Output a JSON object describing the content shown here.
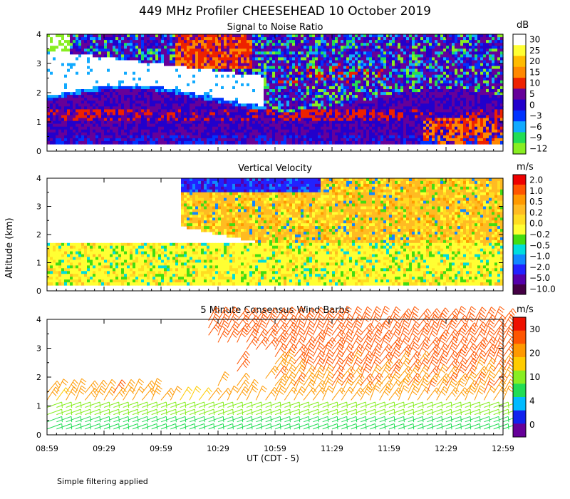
{
  "title": "449 MHz Profiler CHEESEHEAD 10 October 2019",
  "ylabel": "Altitude (km)",
  "xlabel": "UT  (CDT - 5)",
  "footnote": "Simple filtering applied",
  "colors": {
    "snr": [
      "#88ee22",
      "#22dd55",
      "#11aaff",
      "#0033ff",
      "#2200cc",
      "#660099",
      "#ee2200",
      "#ff8800",
      "#ffbb00",
      "#ffff33",
      "#ffffff"
    ],
    "vv": [
      "#440044",
      "#5500aa",
      "#2222ff",
      "#1188ff",
      "#00dddd",
      "#44dd11",
      "#ffff33",
      "#ffdd22",
      "#ffbb22",
      "#ff9900",
      "#ff5500",
      "#ee0000"
    ],
    "wind": [
      "#660099",
      "#1122ee",
      "#00bbff",
      "#22dd55",
      "#88ee22",
      "#ffcc00",
      "#ff9900",
      "#ff5500",
      "#ee1100"
    ]
  },
  "chart_data": [
    {
      "name": "snr",
      "type": "heatmap",
      "title": "Signal to Noise Ratio",
      "units": "dB",
      "colorbar_ticks": [
        "30",
        "25",
        "20",
        "15",
        "10",
        "5",
        "0",
        "−3",
        "−6",
        "−9",
        "−12"
      ],
      "ylabel": "Altitude (km)",
      "ylim": [
        0,
        4
      ],
      "yticks": [
        "0",
        "1",
        "2",
        "3",
        "4"
      ],
      "xticks": [
        "08:59",
        "09:29",
        "09:59",
        "10:29",
        "10:59",
        "11:29",
        "11:59",
        "12:29",
        "12:59"
      ],
      "xlim_hours": [
        8.983,
        12.983
      ]
    },
    {
      "name": "vv",
      "type": "heatmap",
      "title": "Vertical Velocity",
      "units": "m/s",
      "colorbar_ticks": [
        "2.0",
        "1.0",
        "0.5",
        "0.2",
        "0.0",
        "−0.2",
        "−0.5",
        "−1.0",
        "−2.0",
        "−5.0",
        "−10.0"
      ],
      "ylabel": "Altitude (km)",
      "ylim": [
        0,
        4
      ],
      "yticks": [
        "0",
        "1",
        "2",
        "3",
        "4"
      ],
      "xticks": [
        "08:59",
        "09:29",
        "09:59",
        "10:29",
        "10:59",
        "11:29",
        "11:59",
        "12:29",
        "12:59"
      ],
      "xlim_hours": [
        8.983,
        12.983
      ]
    },
    {
      "name": "wind",
      "type": "scatter",
      "title": "5 Minute Consensus Wind Barbs",
      "units": "m/s",
      "colorbar_ticks": [
        "30",
        "20",
        "10",
        "4",
        "0"
      ],
      "ylabel": "Altitude (km)",
      "ylim": [
        0,
        4
      ],
      "yticks": [
        "0",
        "1",
        "2",
        "3",
        "4"
      ],
      "xticks": [
        "08:59",
        "09:29",
        "09:59",
        "10:29",
        "10:59",
        "11:29",
        "11:59",
        "12:29",
        "12:59"
      ],
      "xlim_hours": [
        8.983,
        12.983
      ],
      "barb_interval_min": 5,
      "gate_spacing_km": 0.1
    }
  ]
}
